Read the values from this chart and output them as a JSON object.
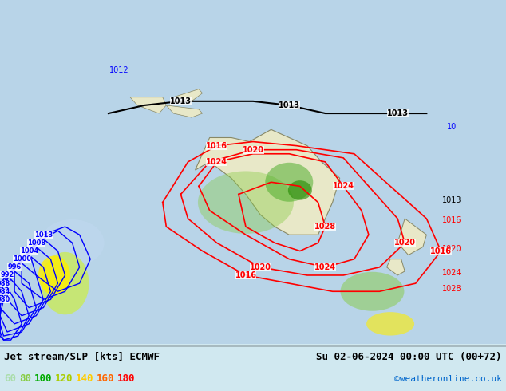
{
  "title_left": "Jet stream/SLP [kts] ECMWF",
  "title_right": "Su 02-06-2024 00:00 UTC (00+72)",
  "credit": "©weatheronline.co.uk",
  "legend_values": [
    "60",
    "80",
    "100",
    "120",
    "140",
    "160",
    "180"
  ],
  "legend_colors": [
    "#aaddaa",
    "#88cc44",
    "#00aa00",
    "#aacc00",
    "#ffcc00",
    "#ff6600",
    "#ff0000"
  ],
  "background_color": "#d0e8f0",
  "bottom_bar_color": "#ffffff",
  "fig_width": 6.34,
  "fig_height": 4.9,
  "dpi": 100
}
